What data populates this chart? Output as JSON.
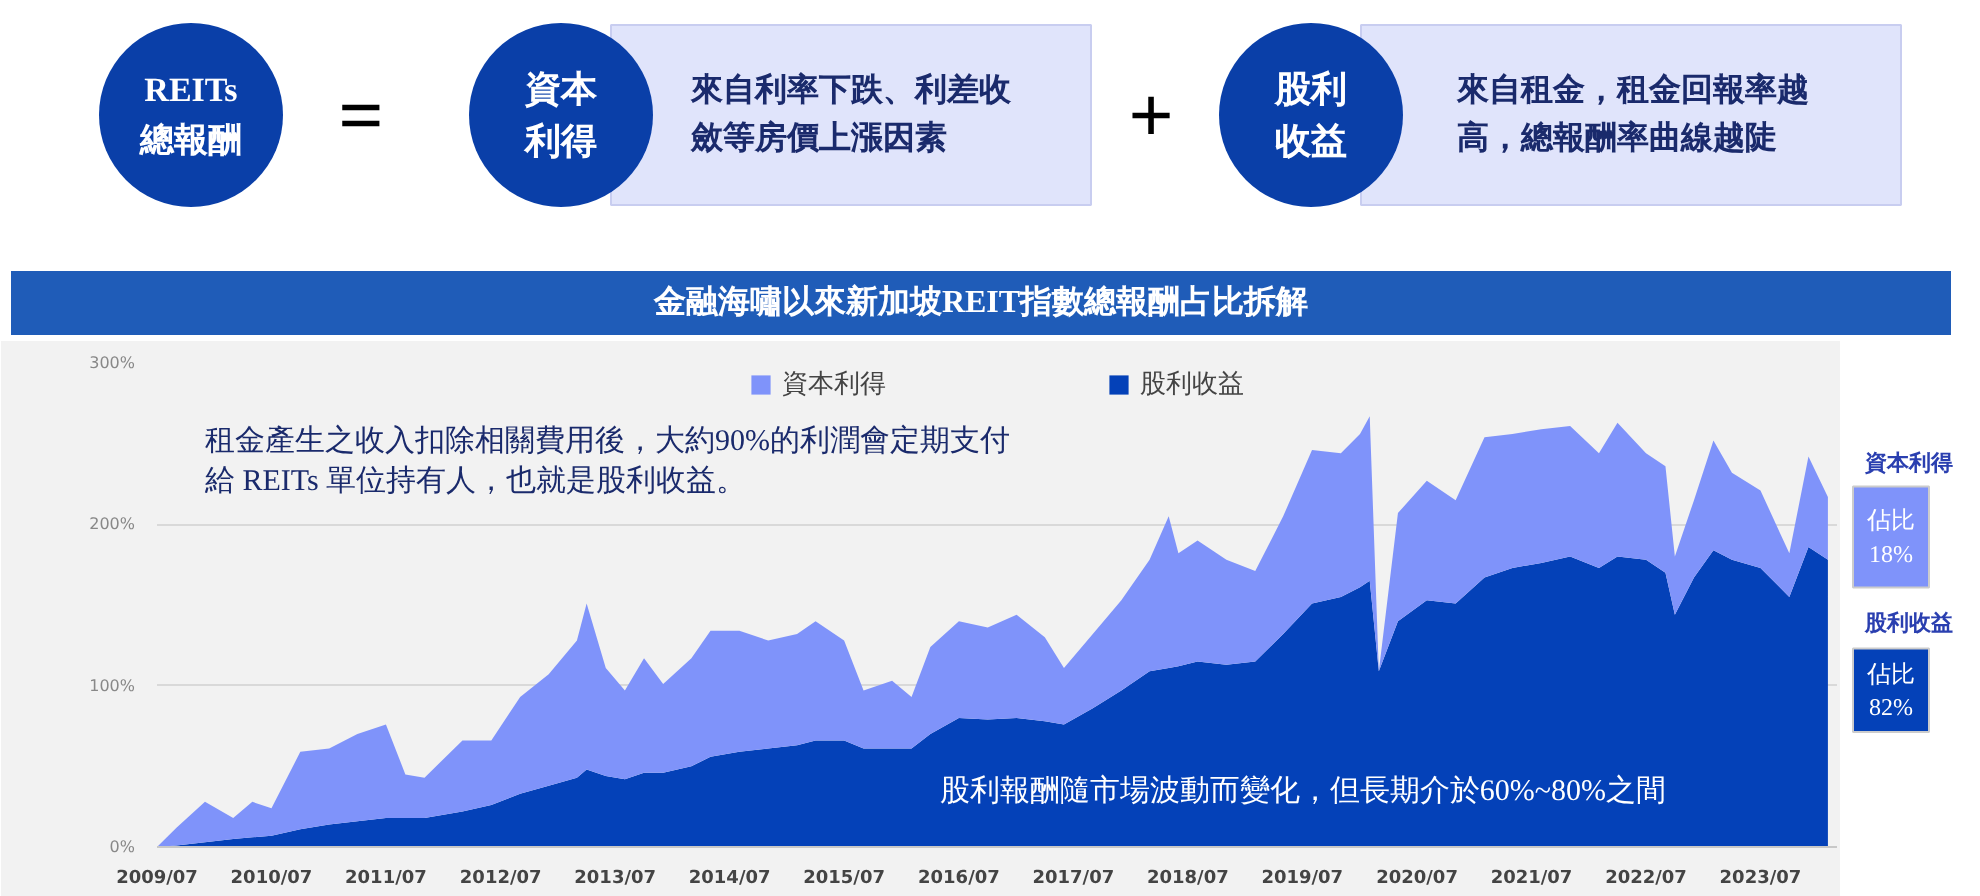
{
  "chart_data": {
    "type": "area",
    "stacked": true,
    "title": "金融海嘯以來新加坡REIT指數總報酬占比拆解",
    "x": [
      "2009-07",
      "2009-09",
      "2009-12",
      "2010-03",
      "2010-05",
      "2010-07",
      "2010-10",
      "2011-01",
      "2011-04",
      "2011-07",
      "2011-09",
      "2011-11",
      "2012-03",
      "2012-06",
      "2012-09",
      "2012-12",
      "2013-03",
      "2013-04",
      "2013-06",
      "2013-08",
      "2013-10",
      "2013-12",
      "2014-03",
      "2014-05",
      "2014-08",
      "2014-11",
      "2015-02",
      "2015-04",
      "2015-07",
      "2015-09",
      "2015-12",
      "2016-02",
      "2016-04",
      "2016-07",
      "2016-10",
      "2017-01",
      "2017-04",
      "2017-06",
      "2017-09",
      "2017-12",
      "2018-03",
      "2018-05",
      "2018-06",
      "2018-08",
      "2018-11",
      "2019-02",
      "2019-05",
      "2019-08",
      "2019-11",
      "2020-01",
      "2020-02",
      "2020-03",
      "2020-05",
      "2020-08",
      "2020-11",
      "2021-02",
      "2021-05",
      "2021-08",
      "2021-11",
      "2022-02",
      "2022-04",
      "2022-07",
      "2022-09",
      "2022-10",
      "2022-12",
      "2023-02",
      "2023-04",
      "2023-07",
      "2023-10",
      "2023-12",
      "2024-02"
    ],
    "series": [
      {
        "name": "股利收益",
        "color": "#0441b8",
        "values": [
          0,
          1,
          3,
          5,
          6,
          7,
          11,
          14,
          16,
          18,
          18,
          18,
          22,
          26,
          33,
          38,
          43,
          48,
          44,
          42,
          46,
          46,
          50,
          56,
          59,
          61,
          63,
          66,
          66,
          61,
          61,
          61,
          70,
          80,
          79,
          80,
          78,
          76,
          86,
          97,
          109,
          111,
          112,
          115,
          113,
          115,
          132,
          151,
          155,
          161,
          165,
          109,
          140,
          153,
          151,
          167,
          173,
          176,
          180,
          173,
          180,
          178,
          170,
          144,
          167,
          184,
          178,
          173,
          155,
          186,
          178
        ]
      },
      {
        "name": "資本利得",
        "color": "#7f93fa",
        "values": [
          0,
          11,
          25,
          13,
          22,
          17,
          48,
          47,
          54,
          58,
          27,
          25,
          44,
          40,
          60,
          69,
          85,
          103,
          67,
          55,
          71,
          55,
          67,
          78,
          75,
          67,
          69,
          74,
          62,
          36,
          42,
          32,
          54,
          60,
          57,
          64,
          52,
          35,
          46,
          56,
          69,
          94,
          70,
          75,
          65,
          56,
          73,
          95,
          89,
          95,
          102,
          0,
          67,
          74,
          64,
          87,
          83,
          83,
          81,
          71,
          83,
          66,
          66,
          36,
          48,
          68,
          54,
          48,
          27,
          56,
          39
        ]
      }
    ],
    "xlim": [
      "2009-07",
      "2024-03"
    ],
    "xticks": [
      {
        "value": "2009-07",
        "label": "2009/07"
      },
      {
        "value": "2010-07",
        "label": "2010/07"
      },
      {
        "value": "2011-07",
        "label": "2011/07"
      },
      {
        "value": "2012-07",
        "label": "2012/07"
      },
      {
        "value": "2013-07",
        "label": "2013/07"
      },
      {
        "value": "2014-07",
        "label": "2014/07"
      },
      {
        "value": "2015-07",
        "label": "2015/07"
      },
      {
        "value": "2016-07",
        "label": "2016/07"
      },
      {
        "value": "2017-07",
        "label": "2017/07"
      },
      {
        "value": "2018-07",
        "label": "2018/07"
      },
      {
        "value": "2019-07",
        "label": "2019/07"
      },
      {
        "value": "2020-07",
        "label": "2020/07"
      },
      {
        "value": "2021-07",
        "label": "2021/07"
      },
      {
        "value": "2022-07",
        "label": "2022/07"
      },
      {
        "value": "2023-07",
        "label": "2023/07"
      }
    ],
    "ylim": [
      0,
      300
    ],
    "yticks": [
      {
        "value": 0,
        "label": "0%"
      },
      {
        "value": 100,
        "label": "100%"
      },
      {
        "value": 200,
        "label": "200%"
      },
      {
        "value": 300,
        "label": "300%"
      }
    ],
    "grid": "y",
    "legend": "top",
    "annotations": [
      "REITs\n總報酬",
      "=",
      "資本",
      "利得",
      "來自利率下跌、利差收",
      "斂等房價上漲因素",
      "+",
      "股利",
      "收益",
      "來自租金，租金回報率越",
      "高，總報酬率曲線越陡",
      "租金產生之收入扣除相關費用後，大約90%的利潤會定期支付",
      "給 REITs 單位持有人，也就是股利收益。",
      "股利報酬隨市場波動而變化，但長期介於60%~80%之間",
      "資本利得",
      "佔比\n18%",
      "股利收益",
      "佔比\n82%"
    ]
  }
}
